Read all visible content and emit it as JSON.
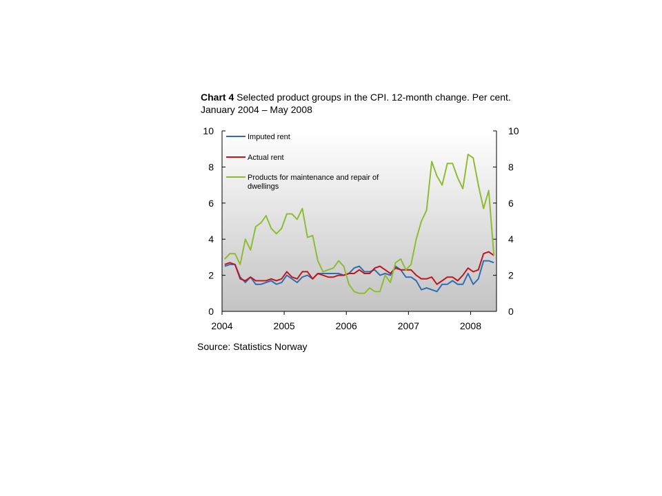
{
  "title_lead": "Chart 4",
  "title_rest": " Selected product groups in the CPI. 12-month change. Per cent. January 2004 – May 2008",
  "source": "Source: Statistics Norway",
  "chart_data": {
    "type": "line",
    "title": "Chart 4 Selected product groups in the CPI. 12-month change. Per cent. January 2004 – May 2008",
    "xlabel": "",
    "ylabel": "",
    "x_start": "2004-01",
    "x_ticks": [
      "2004",
      "2005",
      "2006",
      "2007",
      "2008"
    ],
    "y_ticks": [
      0,
      2,
      4,
      6,
      8,
      10
    ],
    "ylim": [
      0,
      10
    ],
    "secondary_y_ticks": [
      0,
      2,
      4,
      6,
      8,
      10
    ],
    "grid": false,
    "legend_position": "top-left",
    "background": "gradient white-to-grey",
    "series": [
      {
        "name": "Imputed rent",
        "color": "#2e6db4",
        "values": [
          2.5,
          2.6,
          2.6,
          1.9,
          1.6,
          1.9,
          1.5,
          1.5,
          1.6,
          1.7,
          1.5,
          1.6,
          2.0,
          1.8,
          1.6,
          1.9,
          2.0,
          1.8,
          2.1,
          2.1,
          2.1,
          2.1,
          2.1,
          2.0,
          2.1,
          2.4,
          2.5,
          2.2,
          2.2,
          2.3,
          2.0,
          2.1,
          2.0,
          2.5,
          2.3,
          1.9,
          1.9,
          1.7,
          1.2,
          1.3,
          1.2,
          1.1,
          1.5,
          1.5,
          1.7,
          1.5,
          1.5,
          2.1,
          1.5,
          1.8,
          2.8,
          2.8,
          2.7
        ]
      },
      {
        "name": "Actual rent",
        "color": "#c0161b",
        "values": [
          2.6,
          2.7,
          2.6,
          1.8,
          1.7,
          1.9,
          1.7,
          1.7,
          1.7,
          1.8,
          1.7,
          1.8,
          2.2,
          1.9,
          1.8,
          2.2,
          2.2,
          1.8,
          2.1,
          2.0,
          1.9,
          1.9,
          2.0,
          2.0,
          2.1,
          2.1,
          2.3,
          2.1,
          2.1,
          2.4,
          2.5,
          2.3,
          2.1,
          2.4,
          2.3,
          2.3,
          2.3,
          2.0,
          1.8,
          1.8,
          1.9,
          1.5,
          1.7,
          1.9,
          1.9,
          1.7,
          2.0,
          2.4,
          2.2,
          2.3,
          3.2,
          3.3,
          3.1
        ]
      },
      {
        "name": "Products for maintenance and repair of dwellings",
        "legend_lines": [
          "Products for maintenance and repair of",
          "dwellings"
        ],
        "color": "#8fbc2f",
        "values": [
          2.9,
          3.2,
          3.2,
          2.6,
          4.0,
          3.4,
          4.7,
          4.9,
          5.3,
          4.6,
          4.3,
          4.6,
          5.4,
          5.4,
          5.1,
          5.7,
          4.1,
          4.2,
          2.8,
          2.2,
          2.3,
          2.4,
          2.8,
          2.5,
          1.5,
          1.1,
          1.0,
          1.0,
          1.3,
          1.1,
          1.1,
          2.0,
          1.6,
          2.7,
          2.9,
          2.3,
          2.6,
          4.0,
          5.0,
          5.6,
          8.3,
          7.5,
          7.0,
          8.2,
          8.2,
          7.4,
          6.8,
          8.7,
          8.5,
          7.0,
          5.7,
          6.7,
          3.1
        ]
      }
    ]
  }
}
